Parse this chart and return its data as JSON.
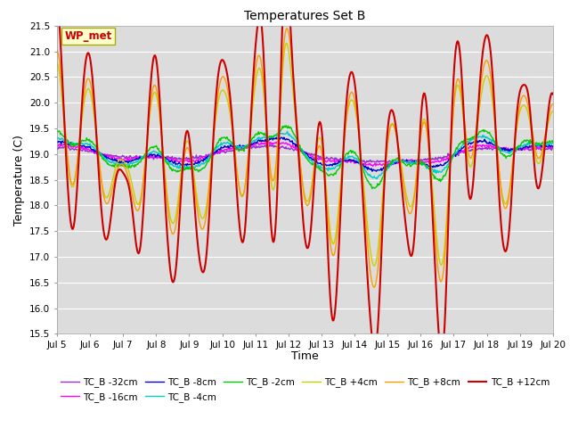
{
  "title": "Temperatures Set B",
  "xlabel": "Time",
  "ylabel": "Temperature (C)",
  "ylim": [
    15.5,
    21.5
  ],
  "yticks": [
    15.5,
    16.0,
    16.5,
    17.0,
    17.5,
    18.0,
    18.5,
    19.0,
    19.5,
    20.0,
    20.5,
    21.0,
    21.5
  ],
  "xtick_labels": [
    "Jul 5",
    "Jul 6",
    "Jul 7",
    "Jul 8",
    "Jul 9",
    "Jul 10",
    "Jul 11",
    "Jul 12",
    "Jul 13",
    "Jul 14",
    "Jul 15",
    "Jul 16",
    "Jul 17",
    "Jul 18",
    "Jul 19",
    "Jul 20"
  ],
  "legend_entries": [
    "TC_B -32cm",
    "TC_B -16cm",
    "TC_B -8cm",
    "TC_B -4cm",
    "TC_B -2cm",
    "TC_B +4cm",
    "TC_B +8cm",
    "TC_B +12cm"
  ],
  "line_colors": [
    "#9933CC",
    "#FF00FF",
    "#0000CC",
    "#00CCCC",
    "#00CC00",
    "#CCCC00",
    "#FF9900",
    "#CC0000"
  ],
  "line_widths": [
    1.0,
    1.0,
    1.0,
    1.0,
    1.0,
    1.0,
    1.0,
    1.5
  ],
  "wp_met_label": "WP_met",
  "wp_met_color": "#CC0000",
  "wp_met_bg": "#FFFFCC",
  "bg_color": "#DCDCDC",
  "n_points": 720
}
